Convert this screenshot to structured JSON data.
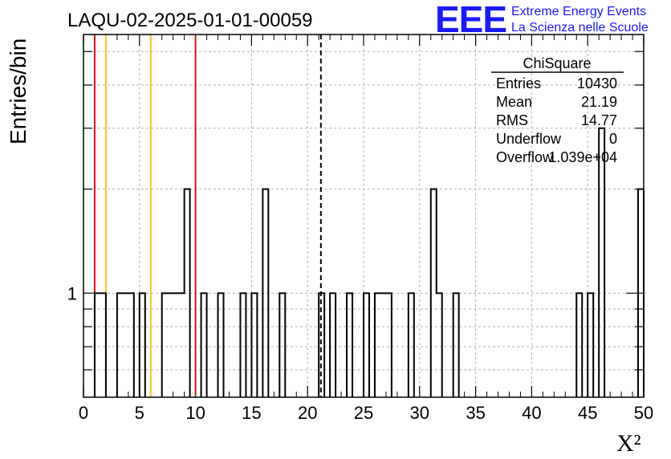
{
  "title": "LAQU-02-2025-01-01-00059",
  "logo": {
    "letters": "EEE",
    "line1": "Extreme Energy Events",
    "line2": "La Scienza nelle Scuole"
  },
  "colors": {
    "histogram": "#000000",
    "red_lines": "#dd1111",
    "yellow_lines": "#f5c518",
    "mean_line": "#000000",
    "logo": "#1a1aff",
    "grid": "#b0b0b0"
  },
  "stats": {
    "name": "ChiSquare",
    "rows": [
      {
        "label": "Entries",
        "value": "10430"
      },
      {
        "label": "Mean",
        "value": "21.19"
      },
      {
        "label": "RMS",
        "value": "14.77"
      },
      {
        "label": "Underflow",
        "value": "0"
      },
      {
        "label": "Overflow",
        "value": "1.039e+04"
      }
    ]
  },
  "chart_data": {
    "type": "histogram",
    "title": "LAQU-02-2025-01-01-00059",
    "xlabel": "X²",
    "ylabel": "Entries/bin",
    "xlim": [
      0,
      50
    ],
    "ylim": [
      0.5,
      5.6
    ],
    "yscale": "log",
    "grid": true,
    "bin_width": 0.5,
    "x_ticks": [
      0,
      5,
      10,
      15,
      20,
      25,
      30,
      35,
      40,
      45,
      50
    ],
    "y_tick_labels": [
      {
        "value": 1,
        "label": "1"
      }
    ],
    "bins": [
      {
        "x": 1.0,
        "count": 1
      },
      {
        "x": 1.5,
        "count": 1
      },
      {
        "x": 3.0,
        "count": 1
      },
      {
        "x": 3.5,
        "count": 1
      },
      {
        "x": 4.0,
        "count": 1
      },
      {
        "x": 5.0,
        "count": 1
      },
      {
        "x": 7.0,
        "count": 1
      },
      {
        "x": 7.5,
        "count": 1
      },
      {
        "x": 8.0,
        "count": 1
      },
      {
        "x": 8.5,
        "count": 1
      },
      {
        "x": 9.0,
        "count": 2
      },
      {
        "x": 10.5,
        "count": 1
      },
      {
        "x": 12.0,
        "count": 1
      },
      {
        "x": 14.0,
        "count": 1
      },
      {
        "x": 15.0,
        "count": 1
      },
      {
        "x": 16.0,
        "count": 2
      },
      {
        "x": 17.5,
        "count": 1
      },
      {
        "x": 21.0,
        "count": 1
      },
      {
        "x": 22.0,
        "count": 1
      },
      {
        "x": 23.5,
        "count": 1
      },
      {
        "x": 25.0,
        "count": 1
      },
      {
        "x": 26.0,
        "count": 1
      },
      {
        "x": 26.5,
        "count": 1
      },
      {
        "x": 27.0,
        "count": 1
      },
      {
        "x": 29.0,
        "count": 1
      },
      {
        "x": 31.0,
        "count": 2
      },
      {
        "x": 31.5,
        "count": 1
      },
      {
        "x": 33.0,
        "count": 1
      },
      {
        "x": 44.0,
        "count": 1
      },
      {
        "x": 45.0,
        "count": 1
      },
      {
        "x": 46.0,
        "count": 3
      },
      {
        "x": 49.5,
        "count": 2
      }
    ],
    "vertical_lines": [
      {
        "x": 1.0,
        "color": "red"
      },
      {
        "x": 2.0,
        "color": "yellow"
      },
      {
        "x": 6.0,
        "color": "yellow"
      },
      {
        "x": 10.0,
        "color": "red"
      },
      {
        "x": 21.19,
        "color": "black",
        "style": "dashed"
      }
    ]
  }
}
